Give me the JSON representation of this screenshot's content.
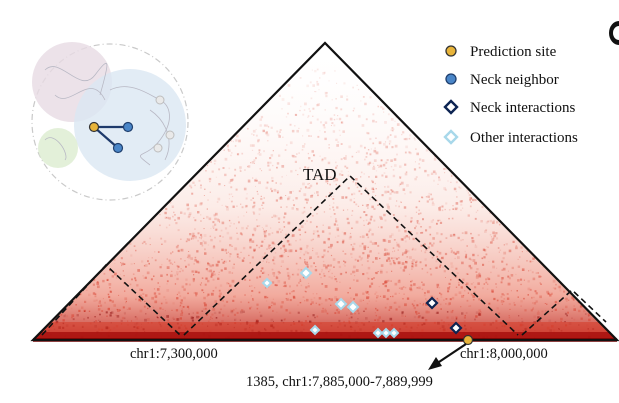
{
  "legend": {
    "items": [
      {
        "label": "Prediction site",
        "marker": "circle",
        "fill": "#e8b43a",
        "stroke": "#333333"
      },
      {
        "label": "Neck neighbor",
        "marker": "circle",
        "fill": "#4a86c8",
        "stroke": "#1f3f6e"
      },
      {
        "label": "Neck interactions",
        "marker": "diamond",
        "fill": "#ffffff",
        "stroke": "#0d2452"
      },
      {
        "label": "Other interactions",
        "marker": "diamond",
        "fill": "#ffffff",
        "stroke": "#a8d8ea"
      }
    ]
  },
  "annotations": {
    "tad_label": "TAD",
    "left_coord": "chr1:7,300,000",
    "right_coord": "chr1:8,000,000",
    "site_label": "1385, chr1:7,885,000-7,889,999"
  },
  "colors": {
    "heatmap": "#d63a28",
    "heatmap_dense": "#8c0c0c",
    "triangle_edge": "#111111",
    "neck_interaction": "#0d2452",
    "other_interaction": "#a8d8ea",
    "prediction_site": "#e8b43a",
    "neck_neighbor": "#4a86c8"
  }
}
